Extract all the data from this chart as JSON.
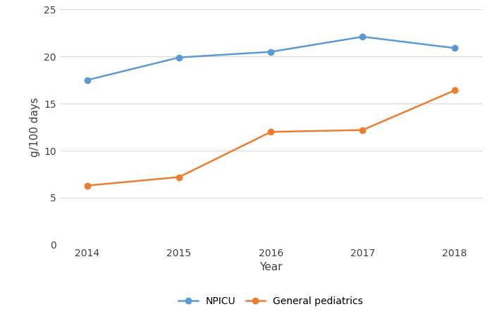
{
  "years": [
    2014,
    2015,
    2016,
    2017,
    2018
  ],
  "npicu": [
    17.5,
    19.9,
    20.5,
    22.1,
    20.9
  ],
  "general_pediatrics": [
    6.3,
    7.2,
    12.0,
    12.2,
    16.4
  ],
  "npicu_color": "#5B9BD5",
  "general_color": "#ED7D31",
  "npicu_label": "NPICU",
  "general_label": "General pediatrics",
  "xlabel": "Year",
  "ylabel": "g/100 days",
  "ylim": [
    0,
    25
  ],
  "yticks": [
    0,
    5,
    10,
    15,
    20,
    25
  ],
  "xlim": [
    2013.7,
    2018.3
  ],
  "markersize": 6,
  "linewidth": 1.8,
  "grid_color": "#D9D9D9",
  "background_color": "#FFFFFF",
  "tick_fontsize": 10,
  "label_fontsize": 11,
  "legend_fontsize": 10
}
